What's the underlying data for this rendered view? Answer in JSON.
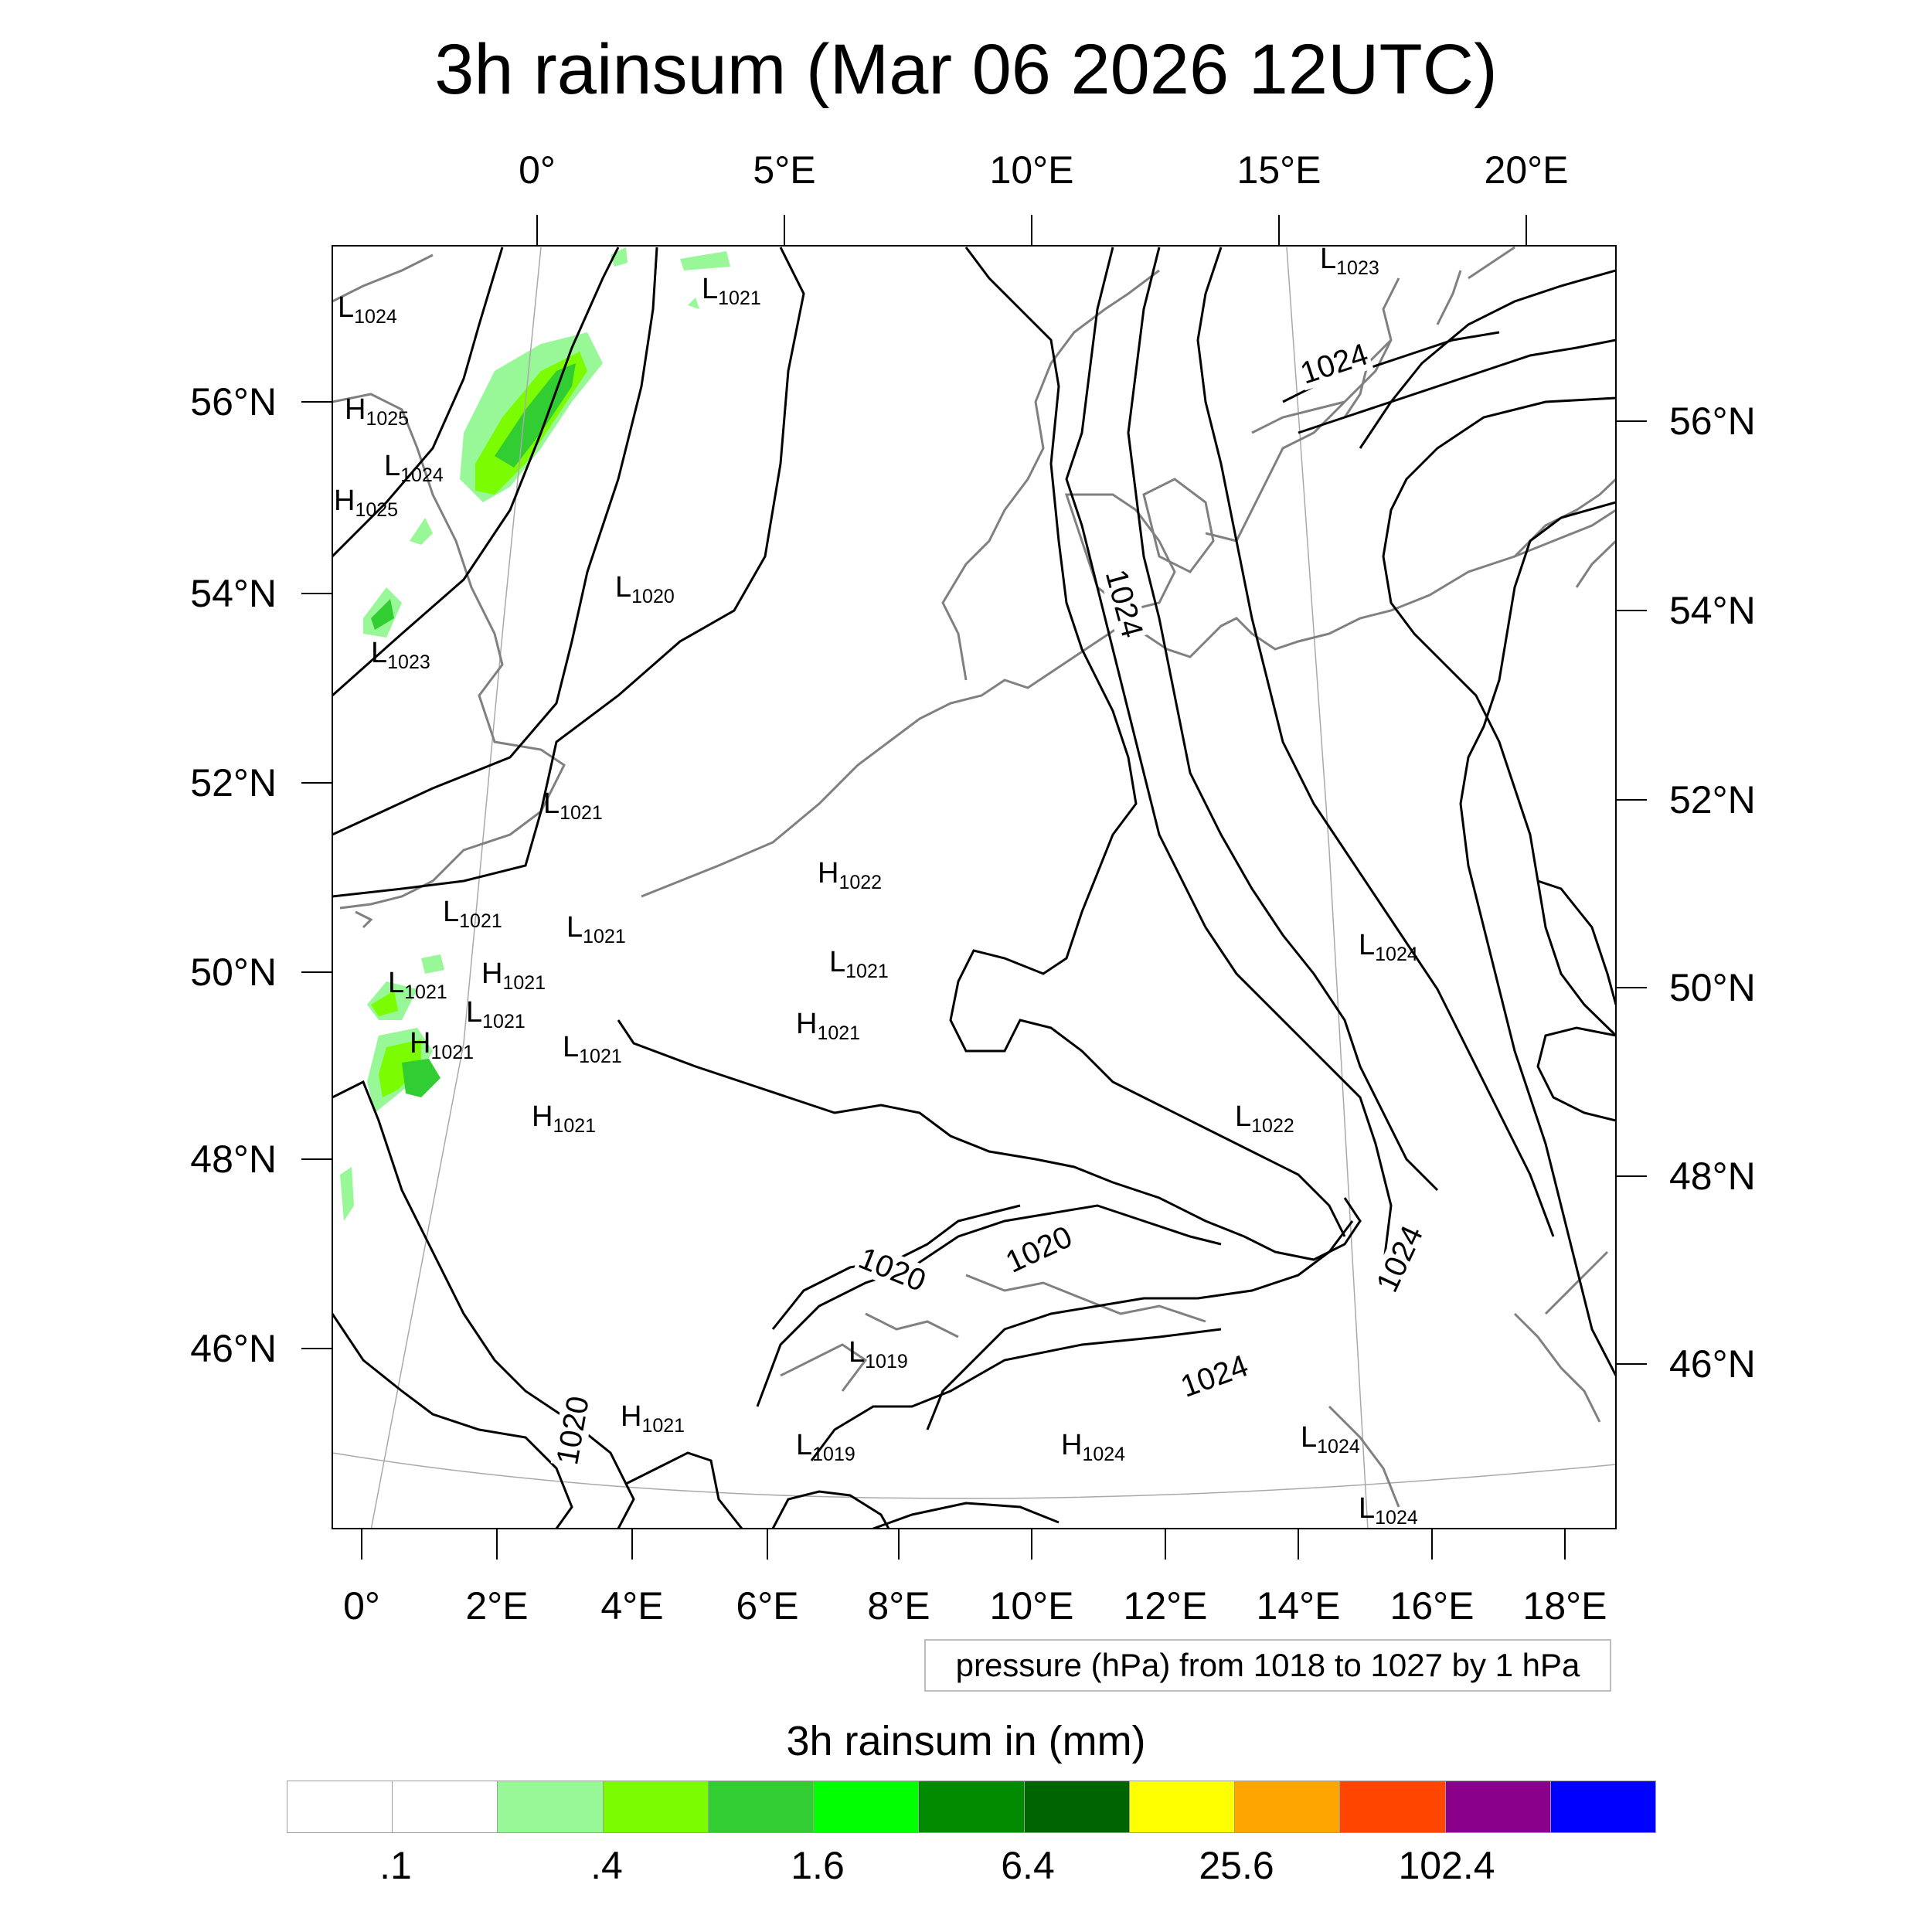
{
  "title": "3h rainsum (Mar 06 2026 12UTC)",
  "map": {
    "top_lon_labels": [
      "0°",
      "5°E",
      "10°E",
      "15°E",
      "20°E"
    ],
    "bottom_lon_labels": [
      "0°",
      "2°E",
      "4°E",
      "6°E",
      "8°E",
      "10°E",
      "12°E",
      "14°E",
      "16°E",
      "18°E"
    ],
    "left_lat_labels": [
      "56°N",
      "54°N",
      "52°N",
      "50°N",
      "48°N",
      "46°N"
    ],
    "right_lat_labels": [
      "56°N",
      "54°N",
      "52°N",
      "50°N",
      "48°N",
      "46°N"
    ],
    "pressure_centers": [
      {
        "type": "L",
        "value": "1024"
      },
      {
        "type": "H",
        "value": "1025"
      },
      {
        "type": "L",
        "value": "1024"
      },
      {
        "type": "H",
        "value": "1025"
      },
      {
        "type": "L",
        "value": "1023"
      },
      {
        "type": "L",
        "value": "1021"
      },
      {
        "type": "L",
        "value": "1020"
      },
      {
        "type": "L",
        "value": "1023"
      },
      {
        "type": "L",
        "value": "1021"
      },
      {
        "type": "L",
        "value": "1021"
      },
      {
        "type": "L",
        "value": "1021"
      },
      {
        "type": "L",
        "value": "1021"
      },
      {
        "type": "H",
        "value": "1021"
      },
      {
        "type": "L",
        "value": "1021"
      },
      {
        "type": "H",
        "value": "1021"
      },
      {
        "type": "L",
        "value": "1021"
      },
      {
        "type": "H",
        "value": "1021"
      },
      {
        "type": "H",
        "value": "1022"
      },
      {
        "type": "L",
        "value": "1021"
      },
      {
        "type": "H",
        "value": "1021"
      },
      {
        "type": "L",
        "value": "1024"
      },
      {
        "type": "L",
        "value": "1022"
      },
      {
        "type": "L",
        "value": "1019"
      },
      {
        "type": "H",
        "value": "1021"
      },
      {
        "type": "L",
        "value": "1019"
      },
      {
        "type": "H",
        "value": "1024"
      },
      {
        "type": "L",
        "value": "1024"
      },
      {
        "type": "L",
        "value": "1024"
      }
    ],
    "contour_labels": [
      "1024",
      "1024",
      "1020",
      "1020",
      "1024",
      "1024",
      "1020"
    ],
    "rain_colors": [
      "#98F898",
      "#7CFC00",
      "#32CD32",
      "#00FF00",
      "#008B00",
      "#006400"
    ]
  },
  "legend": {
    "pressure_info": "pressure (hPa) from 1018 to 1027 by 1 hPa",
    "colorbar_title": "3h rainsum in (mm)",
    "colorbar_colors": [
      "#FFFFFF",
      "#FFFFFF",
      "#98F898",
      "#7CFC00",
      "#32CD32",
      "#00FF00",
      "#008B00",
      "#006400",
      "#FFFF00",
      "#FFA500",
      "#FF4500",
      "#8B008B",
      "#0000FF"
    ],
    "colorbar_labels": [
      ".1",
      ".4",
      "1.6",
      "6.4",
      "25.6",
      "102.4"
    ]
  }
}
